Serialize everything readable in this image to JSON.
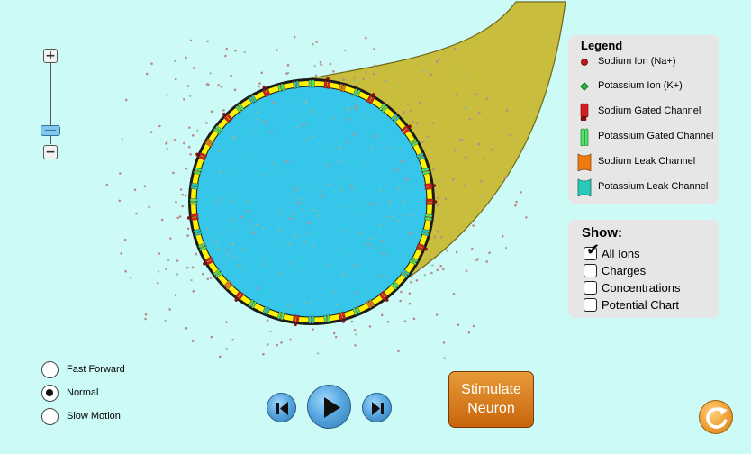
{
  "legend": {
    "title": "Legend",
    "items": [
      {
        "label": "Sodium Ion (Na+)",
        "icon": "sodium-ion-icon",
        "color": "#c21818"
      },
      {
        "label": "Potassium Ion (K+)",
        "icon": "potassium-ion-icon",
        "color": "#1fbf3a"
      },
      {
        "label": "Sodium Gated Channel",
        "icon": "sodium-gated-channel-icon",
        "color": "#e01a1a"
      },
      {
        "label": "Potassium Gated Channel",
        "icon": "potassium-gated-channel-icon",
        "color": "#4fe36b"
      },
      {
        "label": "Sodium Leak Channel",
        "icon": "sodium-leak-channel-icon",
        "color": "#f07a12"
      },
      {
        "label": "Potassium Leak Channel",
        "icon": "potassium-leak-channel-icon",
        "color": "#28c9b8"
      }
    ]
  },
  "show": {
    "title": "Show:",
    "options": [
      {
        "label": "All Ions",
        "checked": true
      },
      {
        "label": "Charges",
        "checked": false
      },
      {
        "label": "Concentrations",
        "checked": false
      },
      {
        "label": "Potential Chart",
        "checked": false
      }
    ]
  },
  "speed": {
    "options": [
      {
        "label": "Fast Forward",
        "selected": false
      },
      {
        "label": "Normal",
        "selected": true
      },
      {
        "label": "Slow Motion",
        "selected": false
      }
    ]
  },
  "controls": {
    "step_back_icon": "step-back-icon",
    "play_icon": "play-icon",
    "step_forward_icon": "step-forward-icon",
    "stimulate_label_line1": "Stimulate",
    "stimulate_label_line2": "Neuron",
    "reset_icon": "reset-icon"
  },
  "zoom": {
    "in_label": "+",
    "out_label": "−",
    "level": 0.2
  },
  "colors": {
    "background": "#ccfbf7",
    "axon": "#c8bd3c",
    "cell_interior": "#36c6ea",
    "membrane": "#fff200",
    "sodium": "#c21818",
    "potassium": "#1fbf3a",
    "sodium_gated": "#e01a1a",
    "potassium_gated": "#4fe36b",
    "sodium_leak": "#f07a12",
    "potassium_leak": "#28c9b8"
  }
}
